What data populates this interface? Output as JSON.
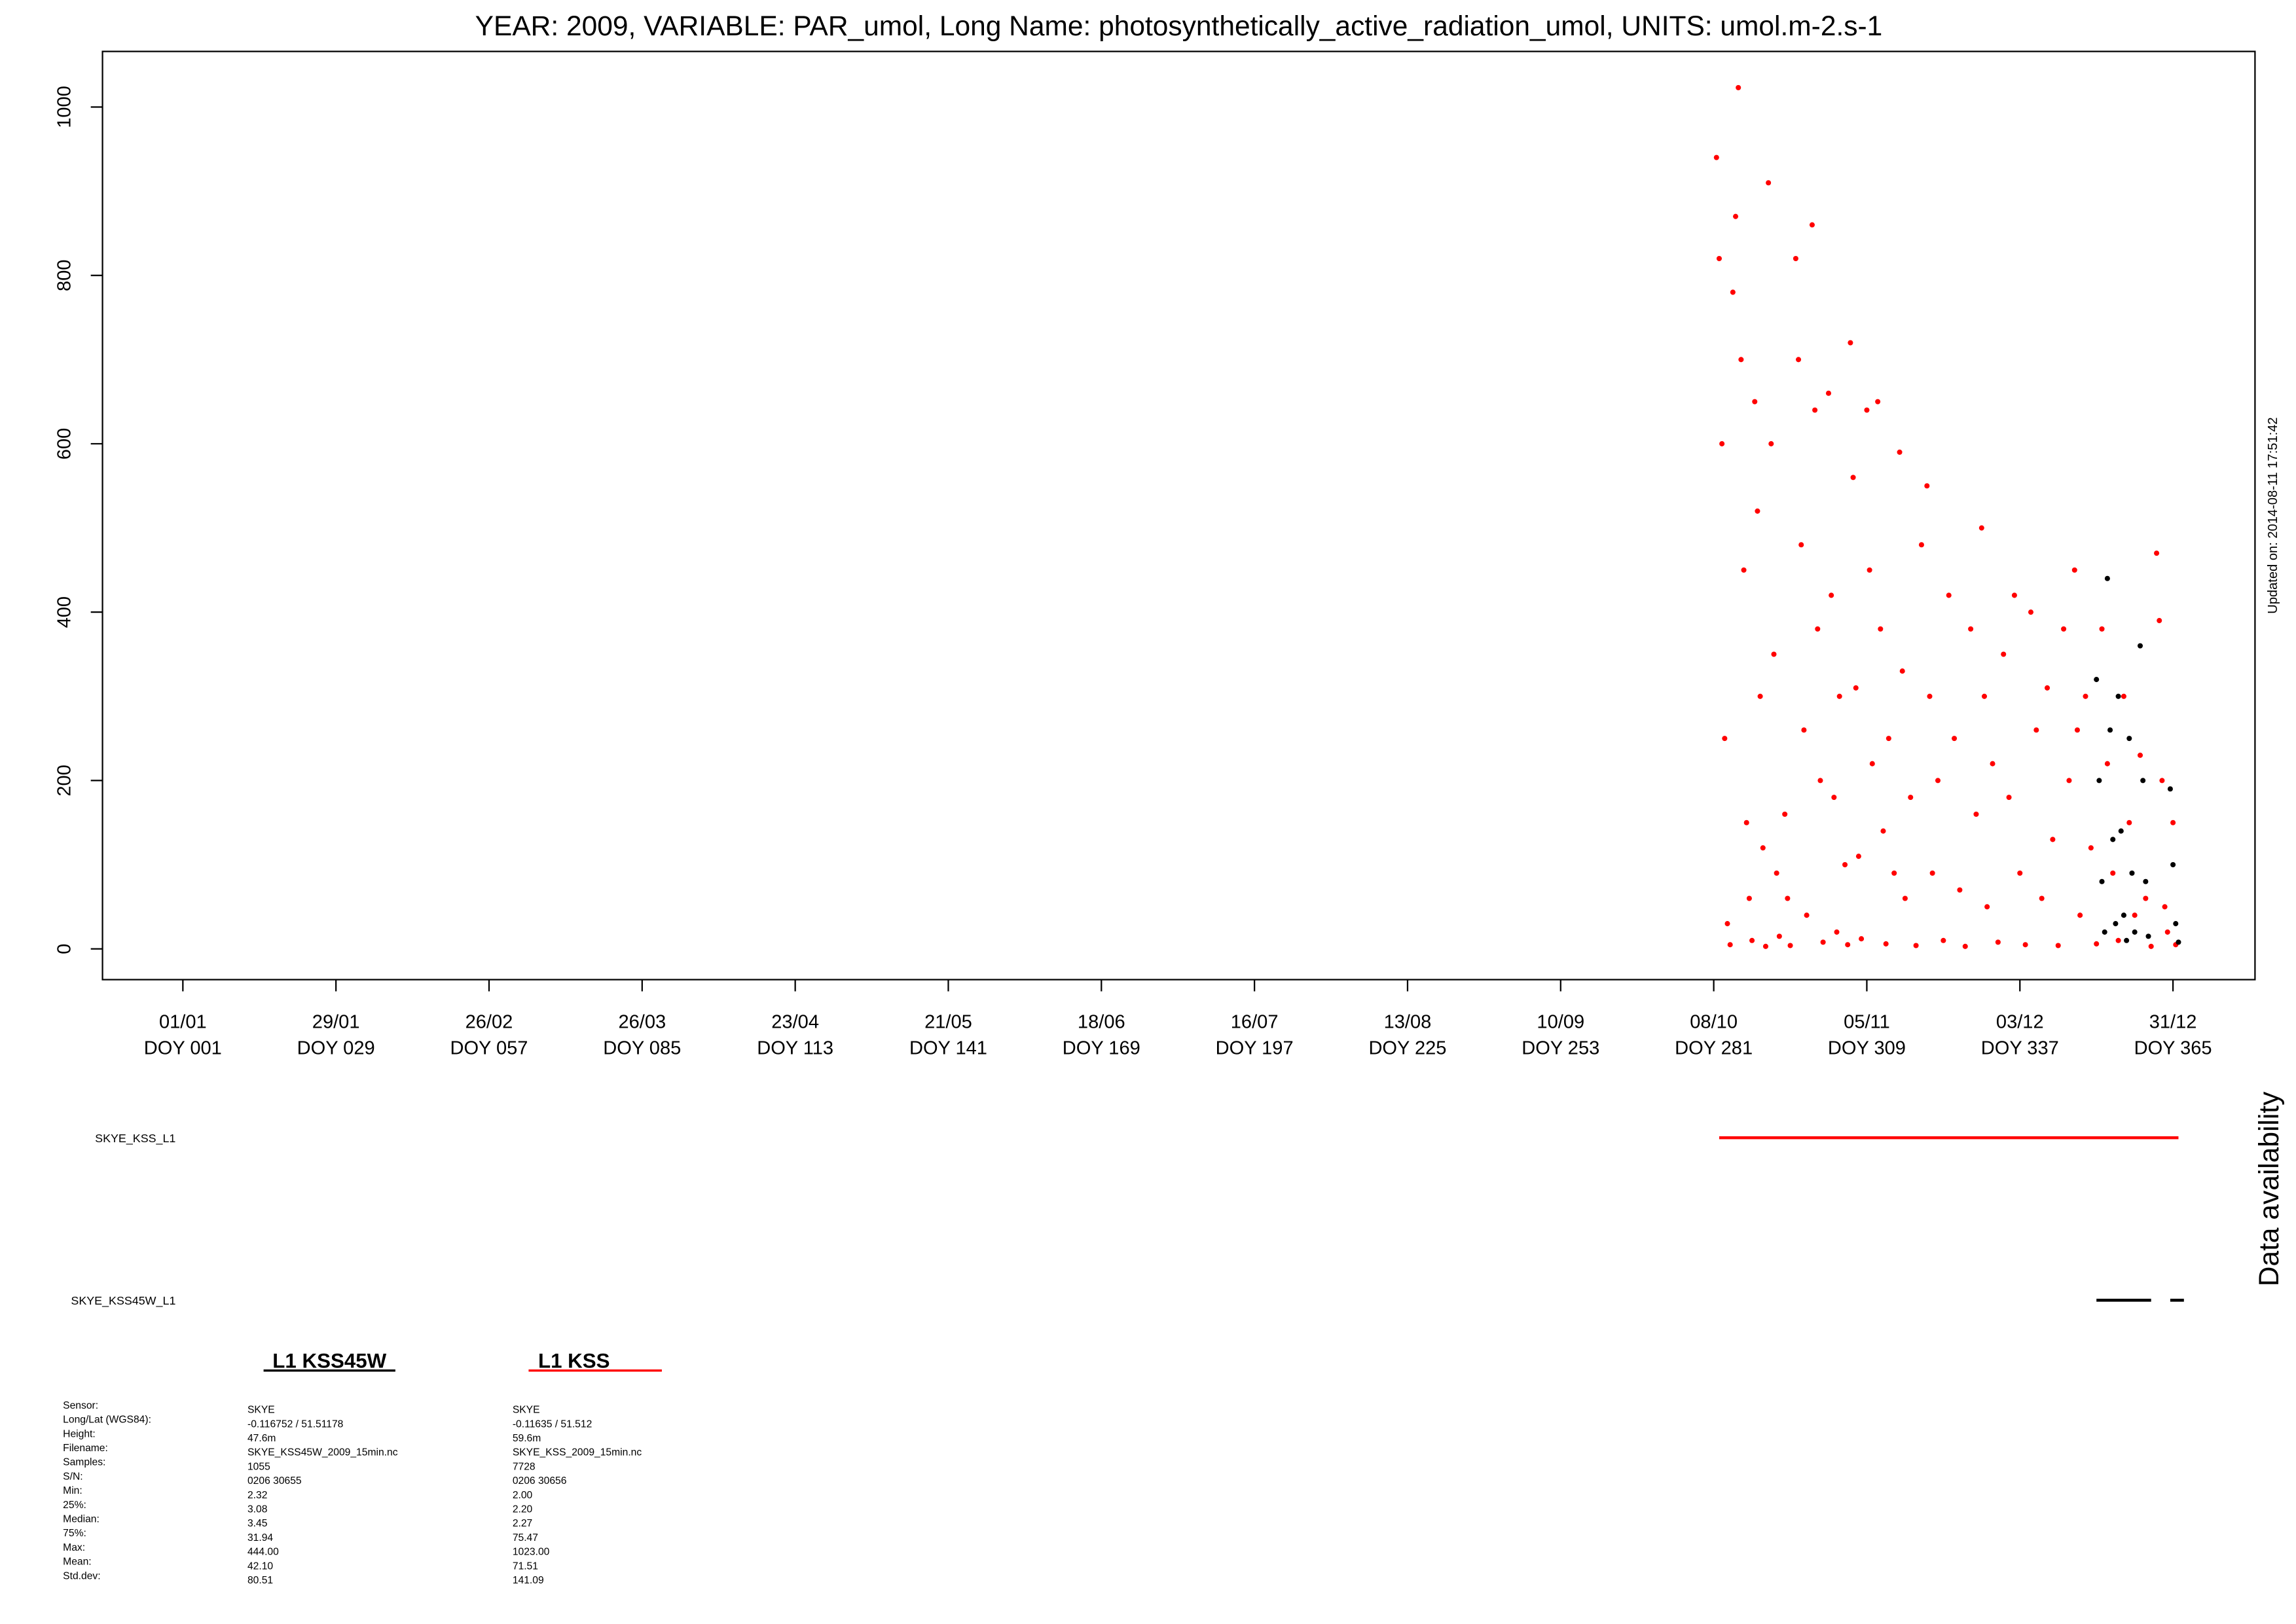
{
  "chart_data": {
    "type": "scatter",
    "title": "YEAR: 2009, VARIABLE: PAR_umol, Long Name: photosynthetically_active_radiation_umol, UNITS: umol.m-2.s-1",
    "annotation": "Updated on: 2014-08-11 17:51:42",
    "xlim": [
      -13.7,
      380
    ],
    "ylim": [
      -36.5,
      1066
    ],
    "yticks": [
      0,
      200,
      400,
      600,
      800,
      1000
    ],
    "xticks": [
      {
        "value": 1,
        "label": "01/01"
      },
      {
        "value": 29,
        "label": "29/01"
      },
      {
        "value": 57,
        "label": "26/02"
      },
      {
        "value": 85,
        "label": "26/03"
      },
      {
        "value": 113,
        "label": "23/04"
      },
      {
        "value": 141,
        "label": "21/05"
      },
      {
        "value": 169,
        "label": "18/06"
      },
      {
        "value": 197,
        "label": "16/07"
      },
      {
        "value": 225,
        "label": "13/08"
      },
      {
        "value": 253,
        "label": "10/09"
      },
      {
        "value": 281,
        "label": "08/10"
      },
      {
        "value": 309,
        "label": "05/11"
      },
      {
        "value": 337,
        "label": "03/12"
      },
      {
        "value": 365,
        "label": "31/12"
      }
    ],
    "xtick_sublabels": [
      "DOY 001",
      "DOY 029",
      "DOY 057",
      "DOY 085",
      "DOY 113",
      "DOY 141",
      "DOY 169",
      "DOY 197",
      "DOY 225",
      "DOY 253",
      "DOY 281",
      "DOY 309",
      "DOY 337",
      "DOY 365"
    ],
    "series": [
      {
        "name": "L1 KSS",
        "color": "#ff0000",
        "x": [
          281.5,
          282,
          282.5,
          283,
          283.5,
          284,
          284.5,
          285,
          285.5,
          286,
          286.5,
          287,
          287.5,
          288,
          288.5,
          289,
          289.5,
          290,
          290.5,
          291,
          291.5,
          292,
          292.5,
          293,
          294,
          294.5,
          295,
          296,
          296.5,
          297,
          297.5,
          298,
          299,
          299.5,
          300,
          300.5,
          301,
          302,
          302.5,
          303,
          303.5,
          304,
          305,
          305.5,
          306,
          306.5,
          307,
          307.5,
          308,
          309,
          309.5,
          310,
          311,
          311.5,
          312,
          312.5,
          313,
          314,
          315,
          315.5,
          316,
          317,
          318,
          319,
          320,
          320.5,
          321,
          322,
          323,
          324,
          325,
          326,
          327,
          328,
          329,
          330,
          330.5,
          331,
          332,
          333,
          334,
          335,
          336,
          337,
          338,
          339,
          340,
          341,
          342,
          343,
          344,
          345,
          346,
          347,
          347.5,
          348,
          349,
          350,
          351,
          352,
          353,
          354,
          355,
          356,
          357,
          358,
          359,
          360,
          361,
          362,
          362.5,
          363,
          363.5,
          364,
          365,
          365.5
        ],
        "values": [
          940,
          820,
          600,
          250,
          30,
          5,
          780,
          870,
          1023,
          700,
          450,
          150,
          60,
          10,
          650,
          520,
          300,
          120,
          3,
          910,
          600,
          350,
          90,
          15,
          160,
          60,
          4,
          820,
          700,
          480,
          260,
          40,
          860,
          640,
          380,
          200,
          8,
          660,
          420,
          180,
          20,
          300,
          100,
          5,
          720,
          560,
          310,
          110,
          12,
          640,
          450,
          220,
          650,
          380,
          140,
          6,
          250,
          90,
          590,
          330,
          60,
          180,
          4,
          480,
          550,
          300,
          90,
          200,
          10,
          420,
          250,
          70,
          3,
          380,
          160,
          500,
          300,
          50,
          220,
          8,
          350,
          180,
          420,
          90,
          5,
          400,
          260,
          60,
          310,
          130,
          4,
          380,
          200,
          450,
          260,
          40,
          300,
          120,
          6,
          380,
          220,
          90,
          10,
          300,
          150,
          40,
          230,
          60,
          3,
          470,
          390,
          200,
          50,
          20,
          150,
          5
        ]
      },
      {
        "name": "L1 KSS45W",
        "color": "#000000",
        "x": [
          351,
          351.5,
          352,
          352.5,
          353,
          353.5,
          354,
          354.5,
          355,
          355.5,
          356,
          356.5,
          357,
          357.5,
          358,
          359,
          359.5,
          360,
          360.5,
          364.5,
          365,
          365.5,
          366
        ],
        "values": [
          320,
          200,
          80,
          20,
          440,
          260,
          130,
          30,
          300,
          140,
          40,
          10,
          250,
          90,
          20,
          360,
          200,
          80,
          15,
          190,
          100,
          30,
          8
        ]
      }
    ],
    "availability_title": "Data availability",
    "availability": [
      {
        "name": "SKYE_KSS_L1",
        "color": "#ff0000",
        "segments": [
          [
            282,
            366
          ]
        ]
      },
      {
        "name": "SKYE_KSS45W_L1",
        "color": "#000000",
        "segments": [
          [
            351,
            361
          ],
          [
            364.5,
            367
          ]
        ]
      }
    ]
  },
  "stats": {
    "row_labels": [
      "Sensor:",
      "Long/Lat (WGS84):",
      "Height:",
      "Filename:",
      "Samples:",
      "S/N:",
      "Min:",
      "25%:",
      "Median:",
      "75%:",
      "Max:",
      "Mean:",
      "Std.dev:"
    ],
    "columns": [
      {
        "title": "L1 KSS45W",
        "color": "#000000",
        "values": [
          "SKYE",
          "-0.116752 / 51.51178",
          "47.6m",
          "SKYE_KSS45W_2009_15min.nc",
          "1055",
          "0206 30655",
          "2.32",
          "3.08",
          "3.45",
          "31.94",
          "444.00",
          "42.10",
          "80.51"
        ]
      },
      {
        "title": "L1 KSS",
        "color": "#ff0000",
        "values": [
          "SKYE",
          "-0.11635 / 51.512",
          "59.6m",
          "SKYE_KSS_2009_15min.nc",
          "7728",
          "0206 30656",
          "2.00",
          "2.20",
          "2.27",
          "75.47",
          "1023.00",
          "71.51",
          "141.09"
        ]
      }
    ]
  }
}
